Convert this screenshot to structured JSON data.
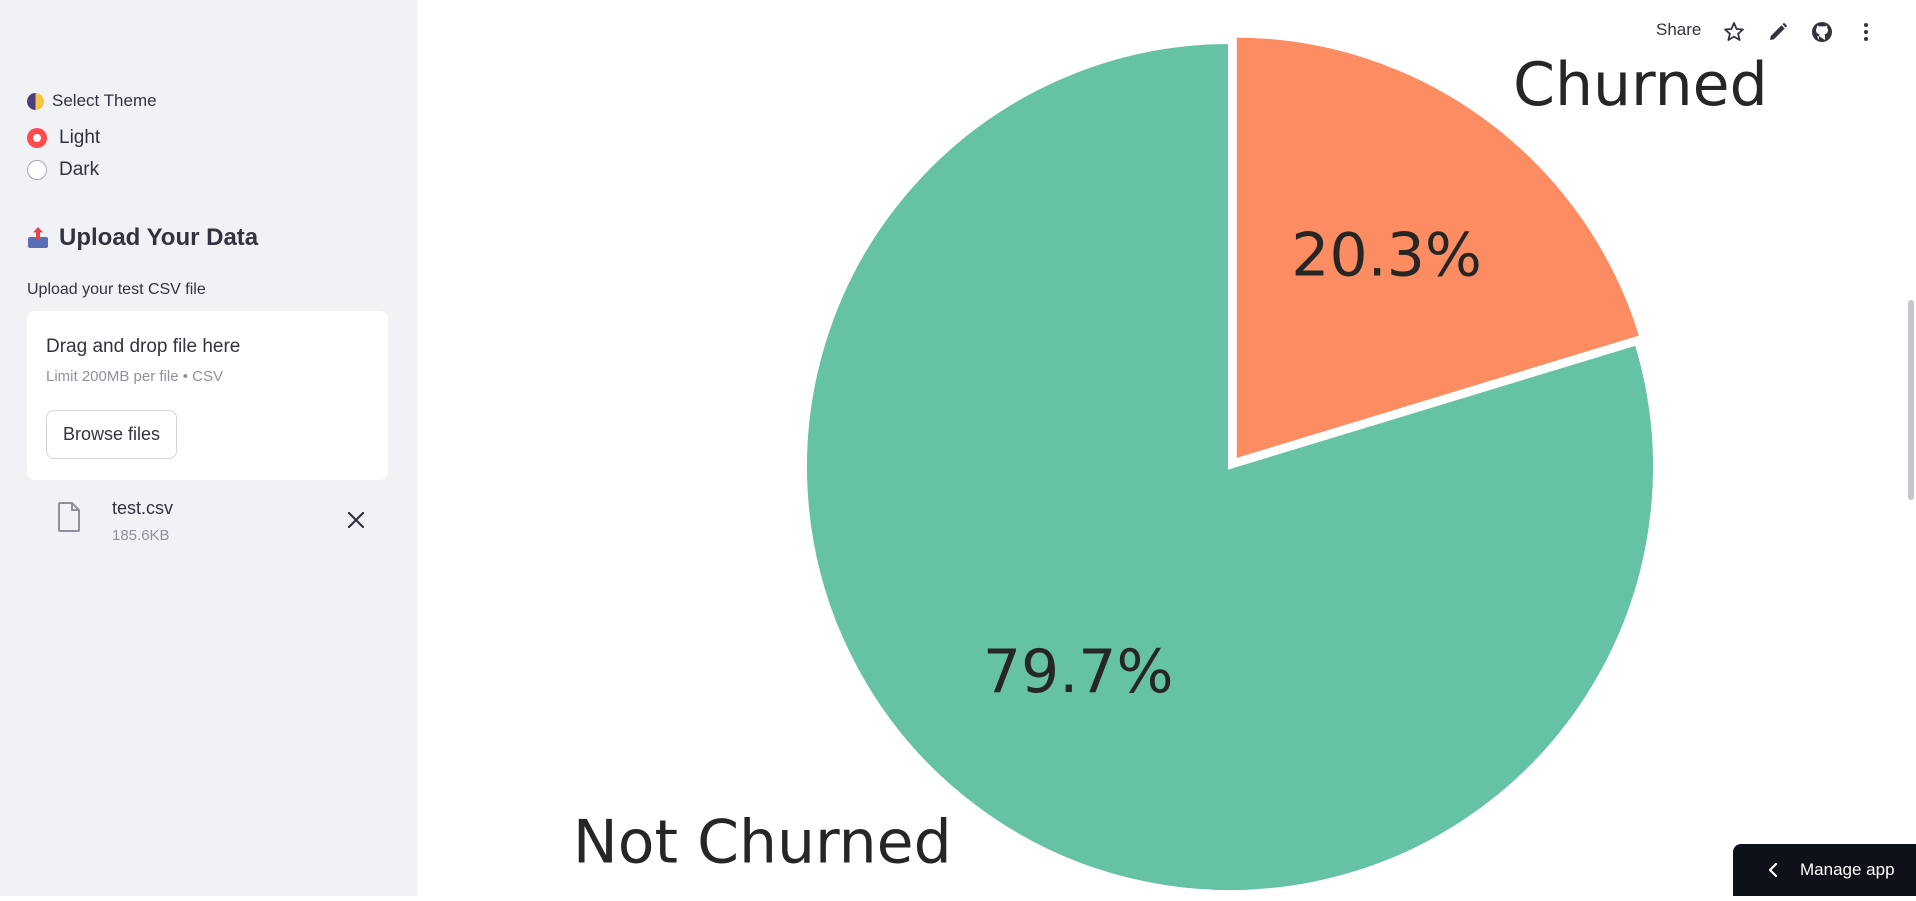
{
  "sidebar": {
    "theme": {
      "label": "Select Theme",
      "icon": "half-moon-icon",
      "options": [
        {
          "label": "Light",
          "checked": true
        },
        {
          "label": "Dark",
          "checked": false
        }
      ]
    },
    "upload": {
      "heading": "Upload Your Data",
      "icon": "inbox-tray-icon",
      "caption": "Upload your test CSV file",
      "dropzone_title": "Drag and drop file here",
      "dropzone_limit": "Limit 200MB per file • CSV",
      "browse_label": "Browse files",
      "file": {
        "name": "test.csv",
        "size": "185.6KB"
      }
    }
  },
  "toolbar": {
    "share_label": "Share",
    "icons": [
      "star-icon",
      "pencil-icon",
      "github-icon",
      "more-vertical-icon"
    ]
  },
  "manage_app_label": "Manage app",
  "colors": {
    "accent": "#ff4b4b",
    "sidebar_bg": "#f0f2f6",
    "not_churned": "#66c2a5",
    "churned": "#fc8d62"
  },
  "chart_data": {
    "type": "pie",
    "categories": [
      "Churned",
      "Not Churned"
    ],
    "values": [
      20.3,
      79.7
    ],
    "labels": [
      "20.3%",
      "79.7%"
    ],
    "colors": [
      "#fc8d62",
      "#66c2a5"
    ],
    "exploded": "Churned"
  }
}
